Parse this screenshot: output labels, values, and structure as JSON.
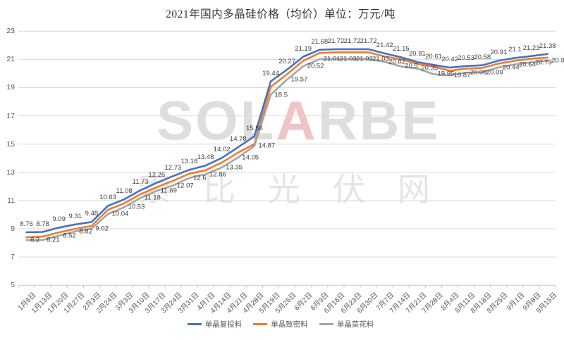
{
  "title": "2021年国内多晶硅价格（均价）单位：万元/吨",
  "watermark": {
    "brand_pre": "SOL",
    "brand_accent": "A",
    "brand_post": "RBE",
    "cjk": "索比光伏网"
  },
  "chart_data": {
    "type": "line",
    "title": "2021年国内多晶硅价格（均价）单位：万元/吨",
    "unit": "万元/吨",
    "categories": [
      "1月6日",
      "1月13日",
      "1月20日",
      "1月27日",
      "2月3日",
      "2月24日",
      "3月3日",
      "3月10日",
      "3月17日",
      "3月24日",
      "3月31日",
      "4月7日",
      "4月14日",
      "4月21日",
      "4月28日",
      "5月19日",
      "5月26日",
      "6月2日",
      "6月9日",
      "6月16日",
      "6月23日",
      "6月30日",
      "7月7日",
      "7月14日",
      "7月21日",
      "7月28日",
      "8月4日",
      "8月11日",
      "8月18日",
      "8月25日",
      "9月1日",
      "9月8日",
      "9月15日"
    ],
    "series": [
      {
        "name": "单晶复投料",
        "color": "#4472C4",
        "data_labels": "above",
        "values": [
          8.76,
          8.78,
          9.09,
          9.31,
          9.48,
          10.63,
          11.08,
          11.73,
          12.26,
          12.73,
          13.18,
          13.48,
          14.02,
          14.78,
          15.56,
          19.44,
          20.27,
          21.19,
          21.68,
          21.72,
          21.72,
          21.72,
          21.42,
          21.15,
          20.81,
          20.61,
          20.42,
          20.53,
          20.58,
          20.91,
          21.1,
          21.23,
          21.38
        ]
      },
      {
        "name": "单晶致密料",
        "color": "#ED7C31",
        "data_labels": "none",
        "values": [
          8.4,
          8.45,
          8.75,
          9.0,
          9.2,
          10.35,
          10.8,
          11.45,
          11.95,
          12.4,
          12.9,
          13.15,
          13.7,
          14.4,
          15.0,
          19.05,
          19.95,
          20.9,
          21.45,
          21.5,
          21.5,
          21.5,
          21.2,
          21.0,
          20.68,
          20.5,
          20.2,
          20.35,
          20.4,
          20.7,
          20.9,
          21.05,
          21.12
        ]
      },
      {
        "name": "单晶菜花料",
        "color": "#A5A5A5",
        "data_labels": "right",
        "values": [
          8.2,
          8.21,
          8.52,
          8.82,
          9.02,
          10.04,
          10.53,
          11.18,
          11.69,
          12.07,
          12.6,
          12.86,
          13.35,
          14.05,
          14.87,
          18.5,
          19.57,
          20.52,
          21.01,
          21.03,
          21.03,
          21.03,
          20.82,
          20.5,
          20.35,
          19.95,
          19.87,
          20.06,
          20.09,
          20.44,
          20.64,
          20.79,
          20.9
        ]
      }
    ],
    "y_ticks": [
      5,
      7,
      9,
      11,
      13,
      15,
      17,
      19,
      21,
      23
    ],
    "ylim": [
      5,
      23
    ],
    "grid": "horizontal",
    "legend_position": "bottom",
    "axis_color": "#C9C9C9",
    "grid_color": "#D9D9D9"
  }
}
